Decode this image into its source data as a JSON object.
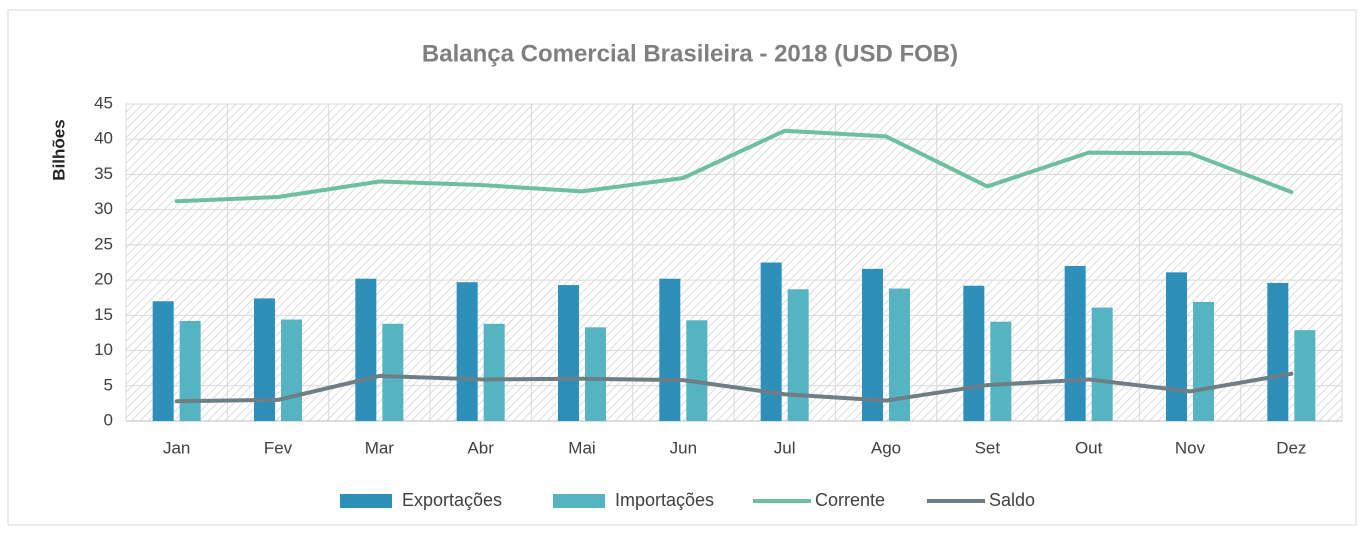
{
  "chart_data": {
    "type": "bar_line",
    "title": "Balança Comercial Brasileira - 2018 (USD FOB)",
    "y_label": "Bilhões",
    "categories": [
      "Jan",
      "Fev",
      "Mar",
      "Abr",
      "Mai",
      "Jun",
      "Jul",
      "Ago",
      "Set",
      "Out",
      "Nov",
      "Dez"
    ],
    "series": [
      {
        "name": "Exportações",
        "kind": "bar",
        "color": "#2e8fba",
        "values": [
          17.0,
          17.4,
          20.2,
          19.7,
          19.3,
          20.2,
          22.5,
          21.6,
          19.2,
          22.0,
          21.1,
          19.6
        ]
      },
      {
        "name": "Importações",
        "kind": "bar",
        "color": "#56b4c2",
        "values": [
          14.2,
          14.4,
          13.8,
          13.8,
          13.3,
          14.3,
          18.7,
          18.8,
          14.1,
          16.1,
          16.9,
          12.9
        ]
      },
      {
        "name": "Corrente",
        "kind": "line",
        "color": "#6dbf9f",
        "values": [
          31.2,
          31.8,
          34.0,
          33.5,
          32.6,
          34.5,
          41.2,
          40.4,
          33.3,
          38.1,
          38.0,
          32.5
        ]
      },
      {
        "name": "Saldo",
        "kind": "line",
        "color": "#6e7e85",
        "values": [
          2.8,
          3.0,
          6.4,
          5.9,
          6.0,
          5.8,
          3.8,
          2.9,
          5.1,
          5.9,
          4.2,
          6.7
        ]
      }
    ],
    "ylim": [
      0,
      45
    ],
    "yticks": [
      0,
      5,
      10,
      15,
      20,
      25,
      30,
      35,
      40,
      45
    ],
    "grid": true,
    "legend": "bottom"
  }
}
